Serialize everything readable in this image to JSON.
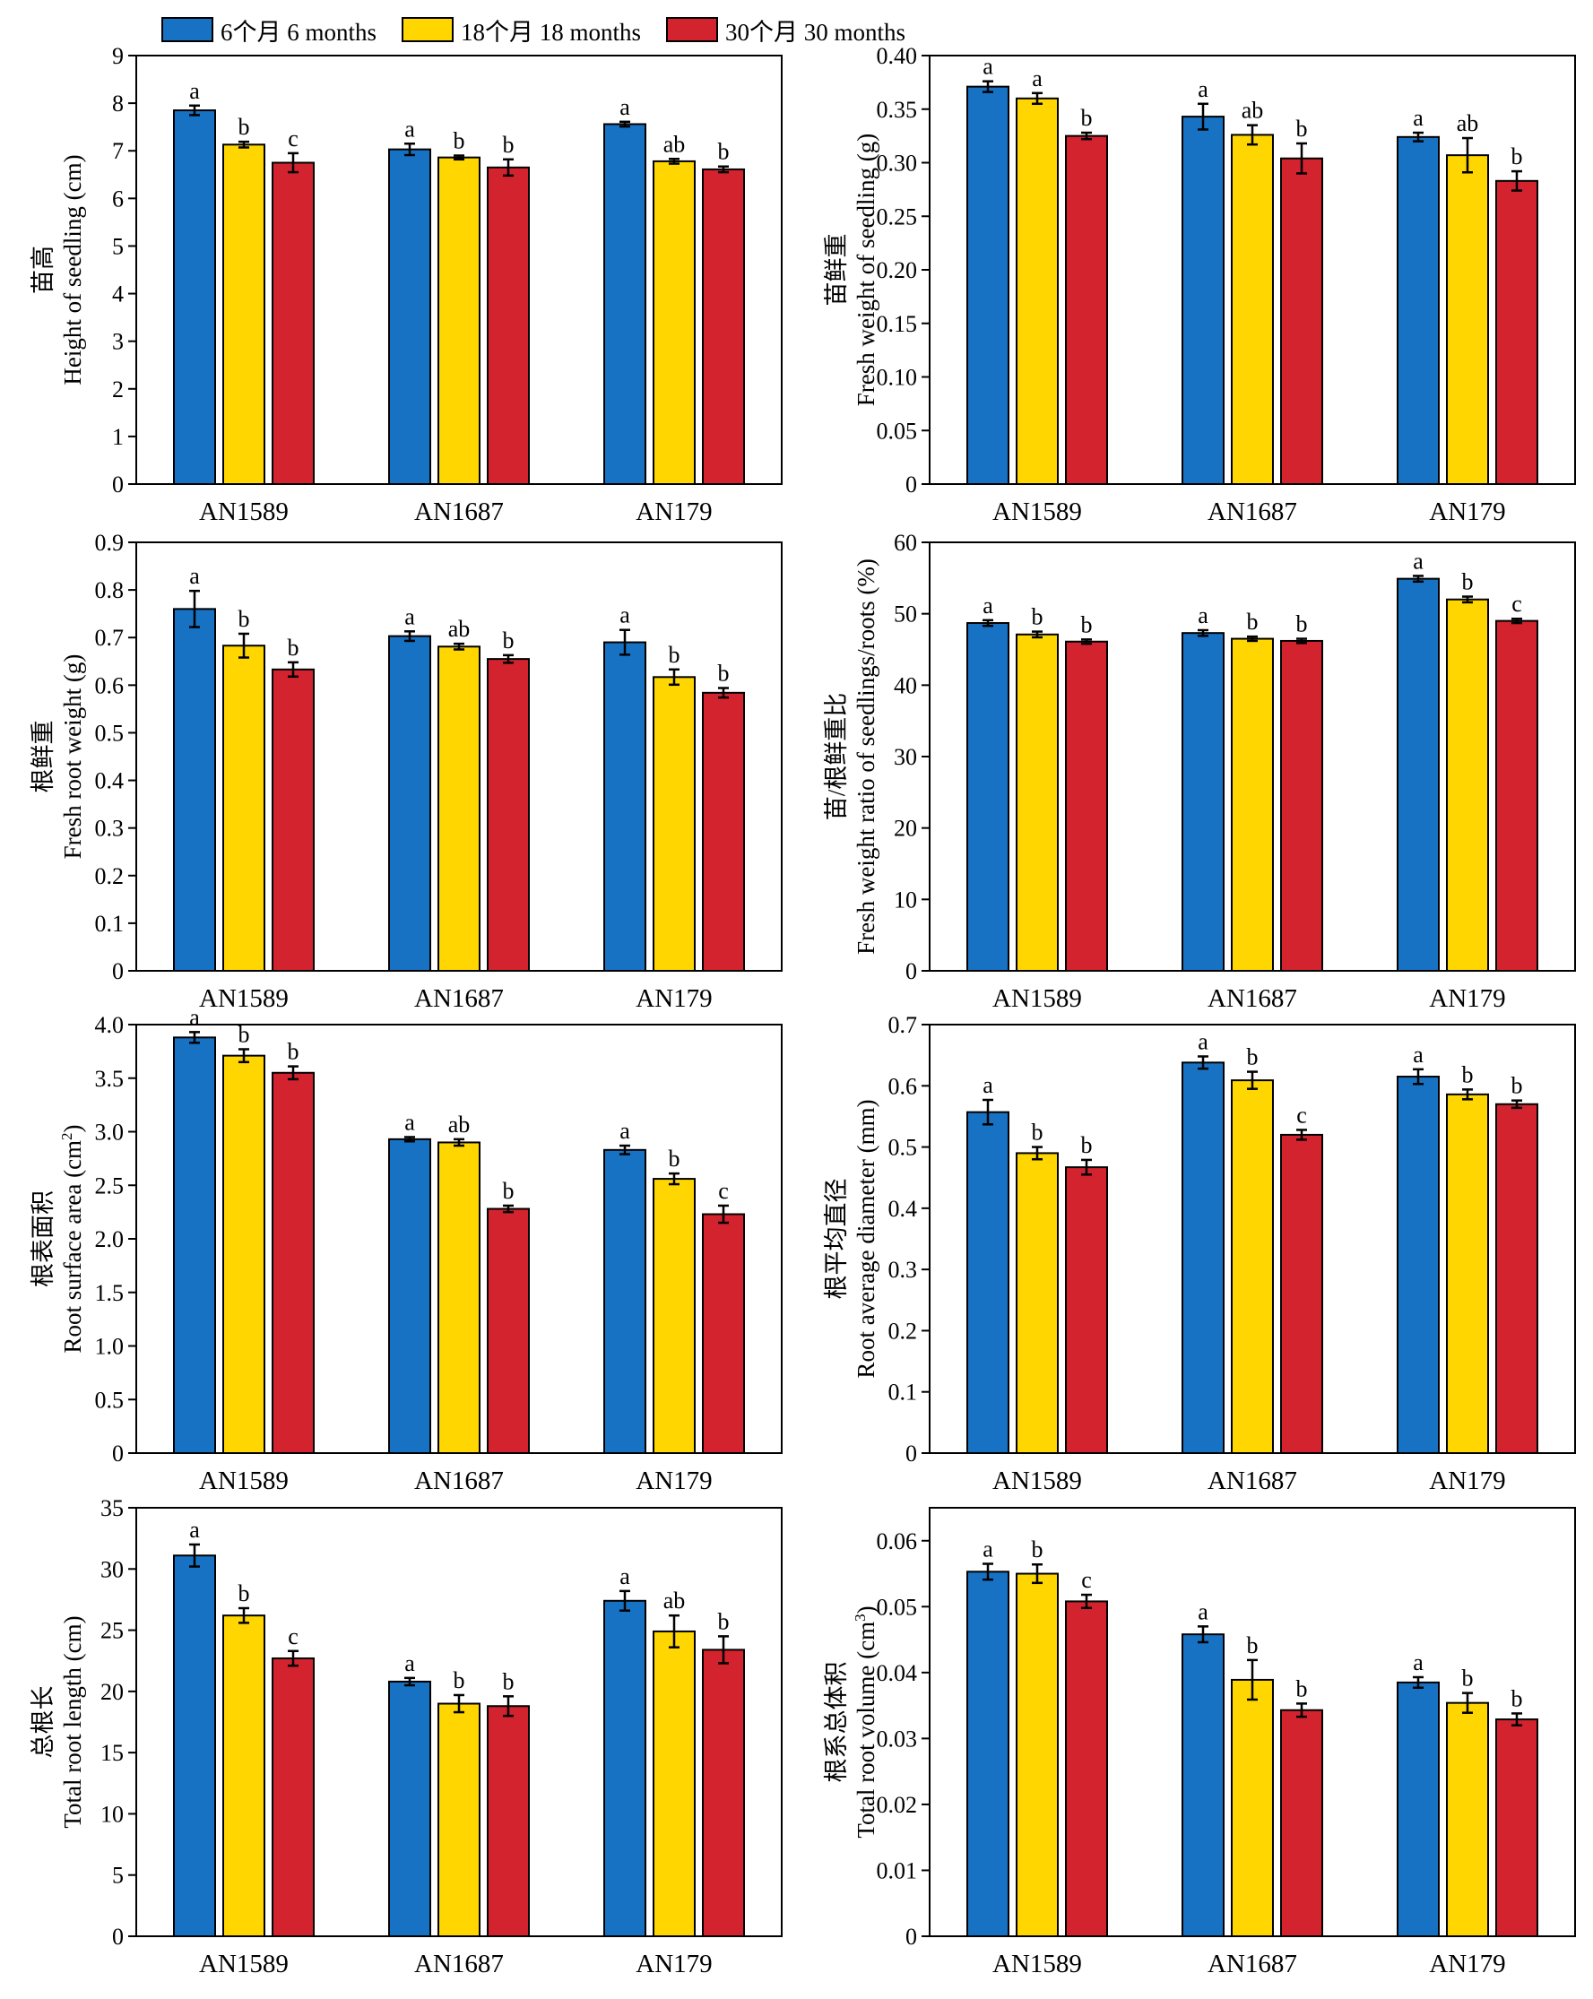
{
  "legend": [
    {
      "label": "6个月 6 months",
      "color": "#1872C4"
    },
    {
      "label": "18个月 18 months",
      "color": "#FFD600"
    },
    {
      "label": "30个月 30 months",
      "color": "#D2232E"
    }
  ],
  "chart_data": [
    {
      "type": "bar",
      "ylabel_cn": "苗高",
      "ylabel_en": "Height of seedling (cm)",
      "categories": [
        "AN1589",
        "AN1687",
        "AN179"
      ],
      "ylim": [
        0,
        9
      ],
      "yticks": [
        "0",
        "1",
        "2",
        "3",
        "4",
        "5",
        "6",
        "7",
        "8",
        "9"
      ],
      "series": [
        {
          "name": "6个月 6 months",
          "values": [
            7.85,
            7.03,
            7.56
          ],
          "errors": [
            0.1,
            0.12,
            0.05
          ],
          "letters": [
            "a",
            "a",
            "a"
          ]
        },
        {
          "name": "18个月 18 months",
          "values": [
            7.13,
            6.86,
            6.78
          ],
          "errors": [
            0.06,
            0.04,
            0.05
          ],
          "letters": [
            "b",
            "b",
            "ab"
          ]
        },
        {
          "name": "30个月 30 months",
          "values": [
            6.75,
            6.65,
            6.61
          ],
          "errors": [
            0.2,
            0.17,
            0.06
          ],
          "letters": [
            "c",
            "b",
            "b"
          ]
        }
      ]
    },
    {
      "type": "bar",
      "ylabel_cn": "苗鲜重",
      "ylabel_en": "Fresh weight of seedling (g)",
      "categories": [
        "AN1589",
        "AN1687",
        "AN179"
      ],
      "ylim": [
        0,
        0.4
      ],
      "yticks": [
        "0",
        "0.05",
        "0.10",
        "0.15",
        "0.20",
        "0.25",
        "0.30",
        "0.35",
        "0.40"
      ],
      "series": [
        {
          "name": "6个月 6 months",
          "values": [
            0.371,
            0.343,
            0.324
          ],
          "errors": [
            0.005,
            0.012,
            0.004
          ],
          "letters": [
            "a",
            "a",
            "a"
          ]
        },
        {
          "name": "18个月 18 months",
          "values": [
            0.36,
            0.326,
            0.307
          ],
          "errors": [
            0.005,
            0.009,
            0.016
          ],
          "letters": [
            "a",
            "ab",
            "ab"
          ]
        },
        {
          "name": "30个月 30 months",
          "values": [
            0.325,
            0.304,
            0.283
          ],
          "errors": [
            0.003,
            0.014,
            0.009
          ],
          "letters": [
            "b",
            "b",
            "b"
          ]
        }
      ]
    },
    {
      "type": "bar",
      "ylabel_cn": "根鲜重",
      "ylabel_en": "Fresh root weight (g)",
      "categories": [
        "AN1589",
        "AN1687",
        "AN179"
      ],
      "ylim": [
        0,
        0.9
      ],
      "yticks": [
        "0",
        "0.1",
        "0.2",
        "0.3",
        "0.4",
        "0.5",
        "0.6",
        "0.7",
        "0.8",
        "0.9"
      ],
      "series": [
        {
          "name": "6个月 6 months",
          "values": [
            0.76,
            0.703,
            0.69
          ],
          "errors": [
            0.038,
            0.01,
            0.026
          ],
          "letters": [
            "a",
            "a",
            "a"
          ]
        },
        {
          "name": "18个月 18 months",
          "values": [
            0.683,
            0.681,
            0.617
          ],
          "errors": [
            0.025,
            0.006,
            0.016
          ],
          "letters": [
            "b",
            "ab",
            "b"
          ]
        },
        {
          "name": "30个月 30 months",
          "values": [
            0.633,
            0.655,
            0.584
          ],
          "errors": [
            0.015,
            0.008,
            0.01
          ],
          "letters": [
            "b",
            "b",
            "b"
          ]
        }
      ]
    },
    {
      "type": "bar",
      "ylabel_cn": "苗/根鲜重比",
      "ylabel_en": "Fresh weight ratio of seedlings/roots (%)",
      "categories": [
        "AN1589",
        "AN1687",
        "AN179"
      ],
      "ylim": [
        0,
        60
      ],
      "yticks": [
        "0",
        "10",
        "20",
        "30",
        "40",
        "50",
        "60"
      ],
      "series": [
        {
          "name": "6个月 6 months",
          "values": [
            48.7,
            47.3,
            54.9
          ],
          "errors": [
            0.4,
            0.4,
            0.4
          ],
          "letters": [
            "a",
            "a",
            "a"
          ]
        },
        {
          "name": "18个月 18 months",
          "values": [
            47.1,
            46.5,
            52.0
          ],
          "errors": [
            0.4,
            0.3,
            0.4
          ],
          "letters": [
            "b",
            "b",
            "b"
          ]
        },
        {
          "name": "30个月 30 months",
          "values": [
            46.1,
            46.2,
            49.0
          ],
          "errors": [
            0.3,
            0.3,
            0.3
          ],
          "letters": [
            "b",
            "b",
            "c"
          ]
        }
      ]
    },
    {
      "type": "bar",
      "ylabel_cn": "根表面积",
      "ylabel_en": "Root surface area (cm",
      "ylabel_sup": "2",
      "ylabel_tail": ")",
      "categories": [
        "AN1589",
        "AN1687",
        "AN179"
      ],
      "ylim": [
        0,
        4.0
      ],
      "yticks": [
        "0",
        "0.5",
        "1.0",
        "1.5",
        "2.0",
        "2.5",
        "3.0",
        "3.5",
        "4.0"
      ],
      "series": [
        {
          "name": "6个月 6 months",
          "values": [
            3.88,
            2.93,
            2.83
          ],
          "errors": [
            0.05,
            0.02,
            0.04
          ],
          "letters": [
            "a",
            "a",
            "a"
          ]
        },
        {
          "name": "18个月 18 months",
          "values": [
            3.71,
            2.9,
            2.56
          ],
          "errors": [
            0.06,
            0.03,
            0.05
          ],
          "letters": [
            "b",
            "ab",
            "b"
          ]
        },
        {
          "name": "30个月 30 months",
          "values": [
            3.55,
            2.28,
            2.23
          ],
          "errors": [
            0.06,
            0.03,
            0.08
          ],
          "letters": [
            "b",
            "b",
            "c"
          ]
        }
      ]
    },
    {
      "type": "bar",
      "ylabel_cn": "根平均直径",
      "ylabel_en": "Root average diameter (mm)",
      "categories": [
        "AN1589",
        "AN1687",
        "AN179"
      ],
      "ylim": [
        0,
        0.7
      ],
      "yticks": [
        "0",
        "0.1",
        "0.2",
        "0.3",
        "0.4",
        "0.5",
        "0.6",
        "0.7"
      ],
      "series": [
        {
          "name": "6个月 6 months",
          "values": [
            0.557,
            0.638,
            0.615
          ],
          "errors": [
            0.02,
            0.01,
            0.012
          ],
          "letters": [
            "a",
            "a",
            "a"
          ]
        },
        {
          "name": "18个月 18 months",
          "values": [
            0.49,
            0.609,
            0.586
          ],
          "errors": [
            0.01,
            0.014,
            0.008
          ],
          "letters": [
            "b",
            "b",
            "b"
          ]
        },
        {
          "name": "30个月 30 months",
          "values": [
            0.467,
            0.52,
            0.57
          ],
          "errors": [
            0.012,
            0.008,
            0.006
          ],
          "letters": [
            "b",
            "c",
            "b"
          ]
        }
      ]
    },
    {
      "type": "bar",
      "ylabel_cn": "总根长",
      "ylabel_en": "Total root length (cm)",
      "categories": [
        "AN1589",
        "AN1687",
        "AN179"
      ],
      "ylim": [
        0,
        35
      ],
      "yticks": [
        "0",
        "5",
        "10",
        "15",
        "20",
        "25",
        "30",
        "35"
      ],
      "series": [
        {
          "name": "6个月 6 months",
          "values": [
            31.1,
            20.8,
            27.4
          ],
          "errors": [
            0.9,
            0.3,
            0.8
          ],
          "letters": [
            "a",
            "a",
            "a"
          ]
        },
        {
          "name": "18个月 18 months",
          "values": [
            26.2,
            19.0,
            24.9
          ],
          "errors": [
            0.6,
            0.7,
            1.3
          ],
          "letters": [
            "b",
            "b",
            "ab"
          ]
        },
        {
          "name": "30个月 30 months",
          "values": [
            22.7,
            18.8,
            23.4
          ],
          "errors": [
            0.6,
            0.8,
            1.1
          ],
          "letters": [
            "c",
            "b",
            "b"
          ]
        }
      ]
    },
    {
      "type": "bar",
      "ylabel_cn": "根系总体积",
      "ylabel_en": "Total root volume (cm",
      "ylabel_sup": "3",
      "ylabel_tail": ")",
      "categories": [
        "AN1589",
        "AN1687",
        "AN179"
      ],
      "ylim": [
        0,
        0.065
      ],
      "yticks": [
        "0",
        "0.01",
        "0.02",
        "0.03",
        "0.04",
        "0.05",
        "0.06"
      ],
      "series": [
        {
          "name": "6个月 6 months",
          "values": [
            0.0553,
            0.0458,
            0.0385
          ],
          "errors": [
            0.0012,
            0.0012,
            0.0008
          ],
          "letters": [
            "a",
            "a",
            "a"
          ]
        },
        {
          "name": "18个月 18 months",
          "values": [
            0.055,
            0.0389,
            0.0354
          ],
          "errors": [
            0.0014,
            0.003,
            0.0015
          ],
          "letters": [
            "b",
            "b",
            "b"
          ]
        },
        {
          "name": "30个月 30 months",
          "values": [
            0.0508,
            0.0343,
            0.0329
          ],
          "errors": [
            0.001,
            0.001,
            0.0009
          ],
          "letters": [
            "c",
            "b",
            "b"
          ]
        }
      ]
    }
  ]
}
